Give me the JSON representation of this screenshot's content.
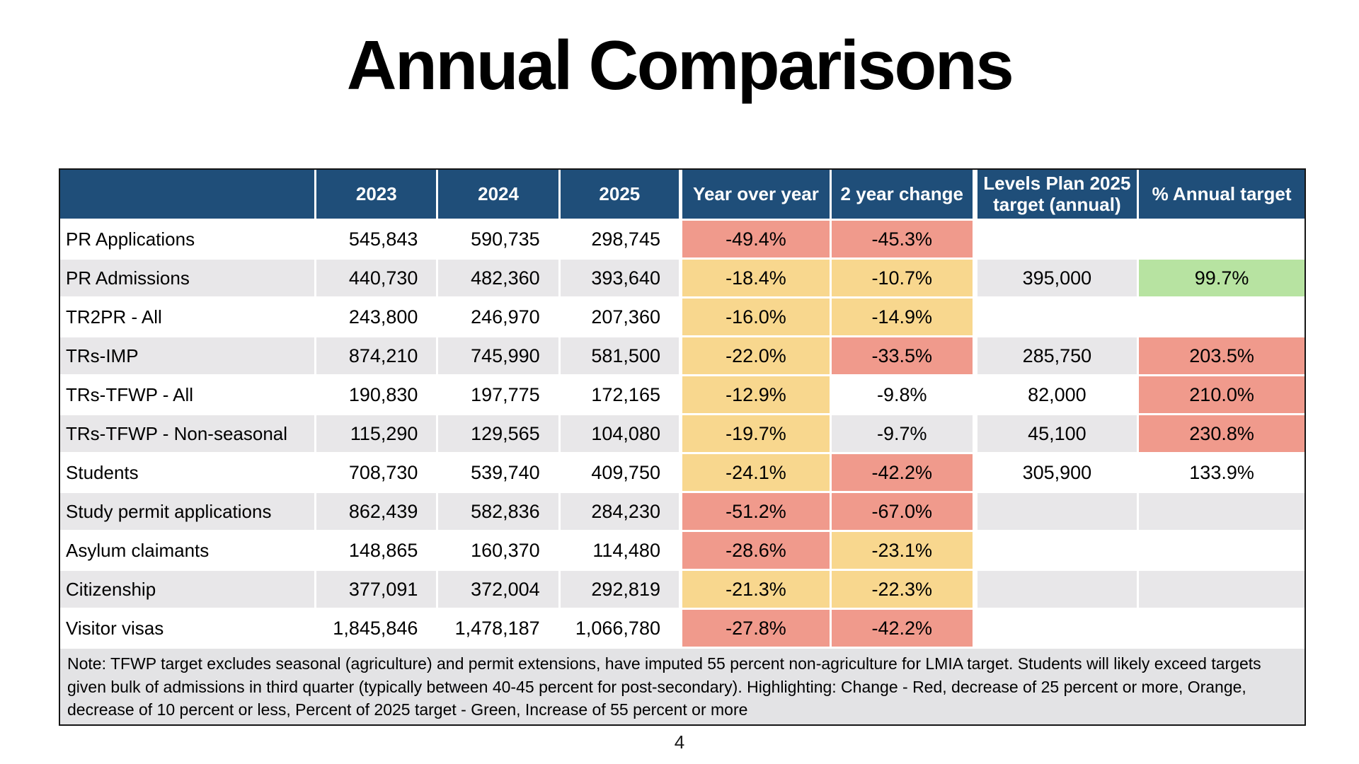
{
  "title": "Annual Comparisons",
  "page_number": "4",
  "table": {
    "columns": [
      "",
      "2023",
      "2024",
      "2025",
      "Year over year",
      "2 year change",
      "Levels Plan 2025 target (annual)",
      "% Annual target"
    ],
    "rows": [
      {
        "label": "PR Applications",
        "y2023": "545,843",
        "y2024": "590,735",
        "y2025": "298,745",
        "yoy": "-49.4%",
        "yoy_highlight": "red",
        "two_year": "-45.3%",
        "two_year_highlight": "red",
        "target": "",
        "pct_target": "",
        "pct_target_highlight": null
      },
      {
        "label": "PR Admissions",
        "y2023": "440,730",
        "y2024": "482,360",
        "y2025": "393,640",
        "yoy": "-18.4%",
        "yoy_highlight": "orange",
        "two_year": "-10.7%",
        "two_year_highlight": "orange",
        "target": "395,000",
        "pct_target": "99.7%",
        "pct_target_highlight": "green"
      },
      {
        "label": "TR2PR - All",
        "y2023": "243,800",
        "y2024": "246,970",
        "y2025": "207,360",
        "yoy": "-16.0%",
        "yoy_highlight": "orange",
        "two_year": "-14.9%",
        "two_year_highlight": "orange",
        "target": "",
        "pct_target": "",
        "pct_target_highlight": null
      },
      {
        "label": "TRs-IMP",
        "y2023": "874,210",
        "y2024": "745,990",
        "y2025": "581,500",
        "yoy": "-22.0%",
        "yoy_highlight": "orange",
        "two_year": "-33.5%",
        "two_year_highlight": "red",
        "target": "285,750",
        "pct_target": "203.5%",
        "pct_target_highlight": "red"
      },
      {
        "label": "TRs-TFWP - All",
        "y2023": "190,830",
        "y2024": "197,775",
        "y2025": "172,165",
        "yoy": "-12.9%",
        "yoy_highlight": "orange",
        "two_year": "-9.8%",
        "two_year_highlight": null,
        "target": "82,000",
        "pct_target": "210.0%",
        "pct_target_highlight": "red"
      },
      {
        "label": "TRs-TFWP - Non-seasonal",
        "y2023": "115,290",
        "y2024": "129,565",
        "y2025": "104,080",
        "yoy": "-19.7%",
        "yoy_highlight": "orange",
        "two_year": "-9.7%",
        "two_year_highlight": null,
        "target": "45,100",
        "pct_target": "230.8%",
        "pct_target_highlight": "red"
      },
      {
        "label": "Students",
        "y2023": "708,730",
        "y2024": "539,740",
        "y2025": "409,750",
        "yoy": "-24.1%",
        "yoy_highlight": "orange",
        "two_year": "-42.2%",
        "two_year_highlight": "red",
        "target": "305,900",
        "pct_target": "133.9%",
        "pct_target_highlight": null
      },
      {
        "label": "Study permit applications",
        "y2023": "862,439",
        "y2024": "582,836",
        "y2025": "284,230",
        "yoy": "-51.2%",
        "yoy_highlight": "red",
        "two_year": "-67.0%",
        "two_year_highlight": "red",
        "target": "",
        "pct_target": "",
        "pct_target_highlight": null
      },
      {
        "label": "Asylum claimants",
        "y2023": "148,865",
        "y2024": "160,370",
        "y2025": "114,480",
        "yoy": "-28.6%",
        "yoy_highlight": "red",
        "two_year": "-23.1%",
        "two_year_highlight": "orange",
        "target": "",
        "pct_target": "",
        "pct_target_highlight": null
      },
      {
        "label": "Citizenship",
        "y2023": "377,091",
        "y2024": "372,004",
        "y2025": "292,819",
        "yoy": "-21.3%",
        "yoy_highlight": "orange",
        "two_year": "-22.3%",
        "two_year_highlight": "orange",
        "target": "",
        "pct_target": "",
        "pct_target_highlight": null
      },
      {
        "label": "Visitor visas",
        "y2023": "1,845,846",
        "y2024": "1,478,187",
        "y2025": "1,066,780",
        "yoy": "-27.8%",
        "yoy_highlight": "red",
        "two_year": "-42.2%",
        "two_year_highlight": "red",
        "target": "",
        "pct_target": "",
        "pct_target_highlight": null
      }
    ]
  },
  "note": "Note: TFWP target excludes seasonal (agriculture) and permit extensions, have imputed 55 percent non-agriculture for LMIA target. Students will likely exceed targets given bulk of admissions in third quarter (typically between 40-45 percent for post-secondary). Highlighting: Change - Red, decrease of 25 percent or more, Orange, decrease of 10 percent or less, Percent of 2025 target - Green, Increase of 55 percent or more",
  "colors": {
    "header_blue": "#1F4E79",
    "highlight_red": "#F09A8C",
    "highlight_orange": "#F8D78E",
    "highlight_green": "#B7E3A1",
    "row_stripe": "#E8E7E9",
    "note_bg": "#E3E3E5"
  }
}
